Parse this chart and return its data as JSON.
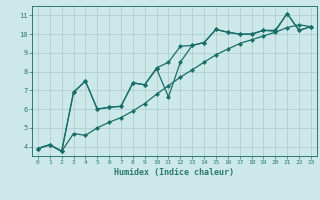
{
  "xlabel": "Humidex (Indice chaleur)",
  "bg_color": "#cce8e8",
  "grid_color": "#aacccc",
  "line_color": "#1a6e6a",
  "spine_color": "#2a7a70",
  "xlim": [
    -0.5,
    23.5
  ],
  "ylim": [
    3.5,
    11.5
  ],
  "xticks": [
    0,
    1,
    2,
    3,
    4,
    5,
    6,
    7,
    8,
    9,
    10,
    11,
    12,
    13,
    14,
    15,
    16,
    17,
    18,
    19,
    20,
    21,
    22,
    23
  ],
  "yticks": [
    4,
    5,
    6,
    7,
    8,
    9,
    10,
    11
  ],
  "line1_x": [
    0,
    1,
    2,
    3,
    4,
    5,
    6,
    7,
    8,
    9,
    10,
    11,
    12,
    13,
    14,
    15,
    16,
    17,
    18,
    19,
    20,
    21,
    22,
    23
  ],
  "line1_y": [
    3.9,
    4.1,
    3.75,
    4.7,
    4.6,
    5.0,
    5.3,
    5.55,
    5.9,
    6.3,
    6.8,
    7.25,
    7.7,
    8.1,
    8.5,
    8.9,
    9.2,
    9.5,
    9.7,
    9.9,
    10.1,
    10.35,
    10.5,
    10.4
  ],
  "line2_x": [
    0,
    1,
    2,
    3,
    4,
    5,
    6,
    7,
    8,
    9,
    10,
    11,
    12,
    13,
    14,
    15,
    16,
    17,
    18,
    19,
    20,
    21,
    22,
    23
  ],
  "line2_y": [
    3.9,
    4.1,
    3.75,
    6.9,
    7.5,
    6.0,
    6.1,
    6.15,
    7.4,
    7.3,
    8.2,
    8.5,
    9.35,
    9.4,
    9.55,
    10.25,
    10.1,
    10.0,
    10.0,
    10.2,
    10.2,
    11.1,
    10.2,
    10.4
  ],
  "line3_x": [
    0,
    1,
    2,
    3,
    4,
    5,
    6,
    7,
    8,
    9,
    10,
    11,
    12,
    13,
    14,
    15,
    16,
    17,
    18,
    19,
    20,
    21,
    22,
    23
  ],
  "line3_y": [
    3.9,
    4.1,
    3.75,
    6.9,
    7.5,
    6.0,
    6.1,
    6.15,
    7.4,
    7.3,
    8.15,
    6.65,
    8.5,
    9.4,
    9.55,
    10.25,
    10.1,
    10.0,
    10.0,
    10.2,
    10.15,
    11.1,
    10.2,
    10.4
  ],
  "markersize": 2.5,
  "linewidth": 0.9
}
